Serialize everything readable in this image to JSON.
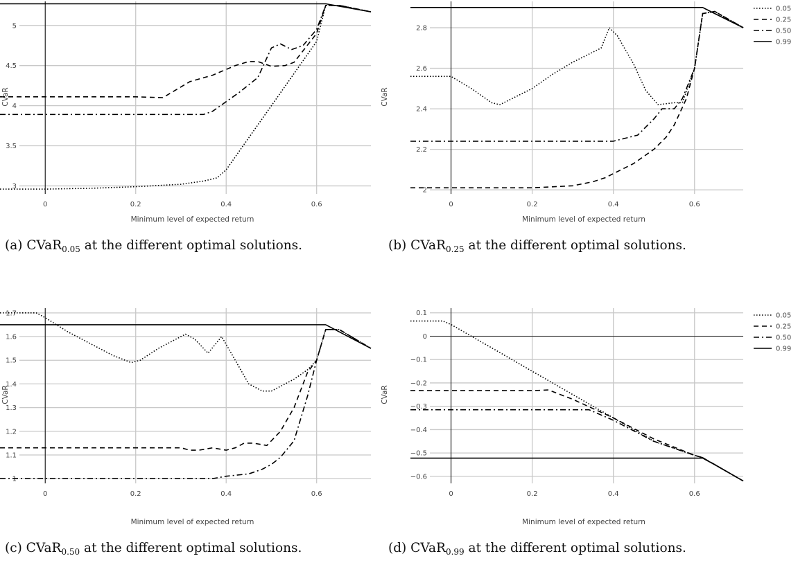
{
  "chart_data": [
    {
      "type": "line",
      "caption": {
        "prefix": "(a) CVaR",
        "sub": "0.05",
        "suffix": " at the different optimal solutions."
      },
      "xlabel": "Minimum level of expected return",
      "ylabel": "CVaR",
      "xlim": [
        -0.1,
        0.72
      ],
      "ylim": [
        2.9,
        5.3
      ],
      "xticks": [
        0,
        0.2,
        0.4,
        0.6
      ],
      "xtick_labels": [
        "0",
        "0.2",
        "0.4",
        "0.6"
      ],
      "yticks": [
        3,
        3.5,
        4,
        4.5,
        5
      ],
      "ytick_labels": [
        "3",
        "3.5",
        "4",
        "4.5",
        "5"
      ],
      "grid": true,
      "legend": null,
      "series": [
        {
          "style": "dotted",
          "x": [
            -0.1,
            0,
            0.1,
            0.2,
            0.3,
            0.35,
            0.38,
            0.4,
            0.45,
            0.5,
            0.55,
            0.6,
            0.62,
            0.65,
            0.72
          ],
          "y": [
            2.96,
            2.96,
            2.97,
            2.99,
            3.02,
            3.06,
            3.1,
            3.2,
            3.6,
            4.0,
            4.4,
            4.8,
            5.25,
            5.25,
            5.17
          ]
        },
        {
          "style": "dashed",
          "x": [
            -0.1,
            0,
            0.1,
            0.2,
            0.26,
            0.32,
            0.37,
            0.42,
            0.45,
            0.47,
            0.5,
            0.53,
            0.55,
            0.6,
            0.62,
            0.65,
            0.72
          ],
          "y": [
            4.11,
            4.11,
            4.11,
            4.11,
            4.1,
            4.3,
            4.38,
            4.5,
            4.55,
            4.55,
            4.49,
            4.5,
            4.54,
            4.9,
            5.25,
            5.25,
            5.17
          ]
        },
        {
          "style": "dashdot",
          "x": [
            -0.1,
            0,
            0.1,
            0.2,
            0.3,
            0.35,
            0.37,
            0.4,
            0.43,
            0.47,
            0.5,
            0.52,
            0.545,
            0.57,
            0.6,
            0.62,
            0.65,
            0.72
          ],
          "y": [
            3.89,
            3.89,
            3.89,
            3.89,
            3.89,
            3.89,
            3.93,
            4.05,
            4.17,
            4.35,
            4.72,
            4.77,
            4.7,
            4.75,
            4.95,
            5.25,
            5.25,
            5.17
          ]
        },
        {
          "style": "solid",
          "x": [
            -0.1,
            0.62,
            0.65,
            0.72
          ],
          "y": [
            5.27,
            5.27,
            5.24,
            5.17
          ]
        }
      ]
    },
    {
      "type": "line",
      "caption": {
        "prefix": "(b) CVaR",
        "sub": "0.25",
        "suffix": " at the different optimal solutions."
      },
      "xlabel": "Minimum level of expected return",
      "ylabel": "CVaR",
      "xlim": [
        -0.1,
        0.72
      ],
      "ylim": [
        1.98,
        2.93
      ],
      "xticks": [
        0,
        0.2,
        0.4,
        0.6
      ],
      "xtick_labels": [
        "0",
        "0.2",
        "0.4",
        "0.6"
      ],
      "yticks": [
        2,
        2.2,
        2.4,
        2.6,
        2.8
      ],
      "ytick_labels": [
        "2",
        "2.2",
        "2.4",
        "2.6",
        "2.8"
      ],
      "grid": true,
      "legend": "top-right",
      "series": [
        {
          "name": "0.05",
          "style": "dotted",
          "x": [
            -0.1,
            0,
            0.05,
            0.1,
            0.12,
            0.15,
            0.2,
            0.25,
            0.3,
            0.35,
            0.37,
            0.39,
            0.41,
            0.45,
            0.48,
            0.51,
            0.55,
            0.57,
            0.6,
            0.62,
            0.65,
            0.72
          ],
          "y": [
            2.56,
            2.56,
            2.5,
            2.43,
            2.42,
            2.45,
            2.5,
            2.57,
            2.63,
            2.68,
            2.7,
            2.8,
            2.76,
            2.62,
            2.49,
            2.42,
            2.43,
            2.43,
            2.6,
            2.87,
            2.88,
            2.8
          ]
        },
        {
          "name": "0.25",
          "style": "dashed",
          "x": [
            -0.1,
            0,
            0.1,
            0.2,
            0.3,
            0.35,
            0.38,
            0.4,
            0.45,
            0.5,
            0.53,
            0.55,
            0.58,
            0.6,
            0.62,
            0.65,
            0.72
          ],
          "y": [
            2.01,
            2.01,
            2.01,
            2.01,
            2.02,
            2.04,
            2.06,
            2.08,
            2.13,
            2.2,
            2.26,
            2.32,
            2.45,
            2.6,
            2.87,
            2.88,
            2.8
          ]
        },
        {
          "name": "0.50",
          "style": "dashdot",
          "x": [
            -0.1,
            0,
            0.1,
            0.2,
            0.3,
            0.4,
            0.46,
            0.5,
            0.52,
            0.55,
            0.57,
            0.6,
            0.62,
            0.65,
            0.72
          ],
          "y": [
            2.24,
            2.24,
            2.24,
            2.24,
            2.24,
            2.24,
            2.27,
            2.35,
            2.4,
            2.4,
            2.45,
            2.6,
            2.87,
            2.88,
            2.8
          ]
        },
        {
          "name": "0.99",
          "style": "solid",
          "x": [
            -0.1,
            0.62,
            0.65,
            0.72
          ],
          "y": [
            2.9,
            2.9,
            2.87,
            2.8
          ]
        }
      ]
    },
    {
      "type": "line",
      "caption": {
        "prefix": "(c) CVaR",
        "sub": "0.50",
        "suffix": " at the different optimal solutions."
      },
      "xlabel": "Minimum level of expected return",
      "ylabel": "CVaR",
      "xlim": [
        -0.1,
        0.72
      ],
      "ylim": [
        0.98,
        1.72
      ],
      "xticks": [
        0,
        0.2,
        0.4,
        0.6
      ],
      "xtick_labels": [
        "0",
        "0.2",
        "0.4",
        "0.6"
      ],
      "yticks": [
        1,
        1.1,
        1.2,
        1.3,
        1.4,
        1.5,
        1.6,
        1.7
      ],
      "ytick_labels": [
        "1",
        "1.1",
        "1.2",
        "1.3",
        "1.4",
        "1.5",
        "1.6",
        "1.7"
      ],
      "grid": true,
      "legend": null,
      "series": [
        {
          "style": "dotted",
          "x": [
            -0.1,
            -0.02,
            0.0,
            0.05,
            0.1,
            0.15,
            0.19,
            0.21,
            0.25,
            0.31,
            0.33,
            0.36,
            0.39,
            0.42,
            0.45,
            0.48,
            0.5,
            0.55,
            0.58,
            0.6,
            0.62,
            0.65,
            0.72
          ],
          "y": [
            1.7,
            1.7,
            1.68,
            1.62,
            1.57,
            1.52,
            1.49,
            1.5,
            1.55,
            1.61,
            1.59,
            1.53,
            1.6,
            1.5,
            1.4,
            1.37,
            1.37,
            1.42,
            1.46,
            1.5,
            1.63,
            1.63,
            1.55
          ]
        },
        {
          "style": "dashed",
          "x": [
            -0.1,
            0,
            0.1,
            0.2,
            0.25,
            0.28,
            0.3,
            0.32,
            0.34,
            0.37,
            0.4,
            0.42,
            0.44,
            0.46,
            0.49,
            0.52,
            0.55,
            0.58,
            0.6,
            0.62,
            0.65,
            0.72
          ],
          "y": [
            1.13,
            1.13,
            1.13,
            1.13,
            1.13,
            1.13,
            1.13,
            1.12,
            1.12,
            1.13,
            1.12,
            1.13,
            1.15,
            1.15,
            1.14,
            1.2,
            1.3,
            1.45,
            1.5,
            1.63,
            1.63,
            1.55
          ]
        },
        {
          "style": "dashdot",
          "x": [
            -0.1,
            0,
            0.1,
            0.2,
            0.3,
            0.37,
            0.4,
            0.45,
            0.48,
            0.5,
            0.52,
            0.55,
            0.58,
            0.6,
            0.62,
            0.65,
            0.72
          ],
          "y": [
            1.0,
            1.0,
            1.0,
            1.0,
            1.0,
            1.0,
            1.01,
            1.02,
            1.04,
            1.06,
            1.09,
            1.16,
            1.35,
            1.5,
            1.63,
            1.63,
            1.55
          ]
        },
        {
          "style": "solid",
          "x": [
            -0.1,
            0.62,
            0.65,
            0.72
          ],
          "y": [
            1.65,
            1.65,
            1.62,
            1.55
          ]
        }
      ]
    },
    {
      "type": "line",
      "caption": {
        "prefix": "(d) CVaR",
        "sub": "0.99",
        "suffix": " at the different optimal solutions."
      },
      "xlabel": "Minimum level of expected return",
      "ylabel": "CVaR",
      "xlim": [
        -0.1,
        0.72
      ],
      "ylim": [
        -0.63,
        0.12
      ],
      "xticks": [
        0,
        0.2,
        0.4,
        0.6
      ],
      "xtick_labels": [
        "0",
        "0.2",
        "0.4",
        "0.6"
      ],
      "yticks": [
        0.1,
        0,
        -0.1,
        -0.2,
        -0.3,
        -0.4,
        -0.5,
        -0.6
      ],
      "ytick_labels": [
        "0.1",
        "0",
        "−0.1",
        "−0.2",
        "−0.3",
        "−0.4",
        "−0.5",
        "−0.6"
      ],
      "grid": true,
      "legend": "top-right",
      "series": [
        {
          "name": "0.05",
          "style": "dotted",
          "x": [
            -0.1,
            -0.02,
            0,
            0.1,
            0.2,
            0.3,
            0.4,
            0.5,
            0.6,
            0.62,
            0.65,
            0.72
          ],
          "y": [
            0.065,
            0.065,
            0.05,
            -0.05,
            -0.15,
            -0.25,
            -0.35,
            -0.45,
            -0.51,
            -0.52,
            -0.55,
            -0.62
          ]
        },
        {
          "name": "0.25",
          "style": "dashed",
          "x": [
            -0.1,
            0,
            0.1,
            0.2,
            0.24,
            0.3,
            0.4,
            0.5,
            0.6,
            0.62,
            0.65,
            0.72
          ],
          "y": [
            -0.233,
            -0.233,
            -0.233,
            -0.233,
            -0.23,
            -0.27,
            -0.35,
            -0.44,
            -0.51,
            -0.52,
            -0.55,
            -0.62
          ]
        },
        {
          "name": "0.50",
          "style": "dashdot",
          "x": [
            -0.1,
            0,
            0.1,
            0.2,
            0.3,
            0.34,
            0.4,
            0.5,
            0.6,
            0.62,
            0.65,
            0.72
          ],
          "y": [
            -0.315,
            -0.315,
            -0.315,
            -0.315,
            -0.315,
            -0.315,
            -0.36,
            -0.45,
            -0.51,
            -0.52,
            -0.55,
            -0.62
          ]
        },
        {
          "name": "0.99",
          "style": "solid",
          "x": [
            -0.1,
            0.62,
            0.65,
            0.72
          ],
          "y": [
            -0.522,
            -0.522,
            -0.55,
            -0.62
          ]
        }
      ]
    }
  ]
}
